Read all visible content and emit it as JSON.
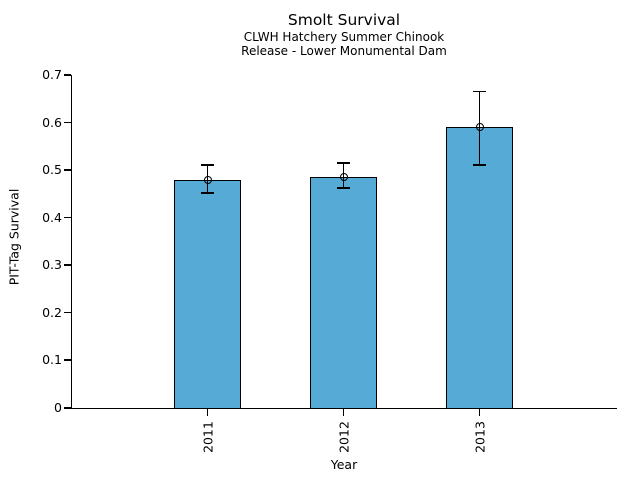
{
  "chart_data": {
    "type": "bar",
    "title": "Smolt Survival",
    "subtitle_lines": [
      "CLWH Hatchery Summer Chinook",
      "Release - Lower Monumental Dam"
    ],
    "xlabel": "Year",
    "ylabel": "PIT-Tag Survival",
    "categories": [
      "2011",
      "2012",
      "2013"
    ],
    "values": [
      0.48,
      0.485,
      0.59
    ],
    "error_low": [
      0.452,
      0.462,
      0.511
    ],
    "error_high": [
      0.511,
      0.515,
      0.665
    ],
    "ylim": [
      0,
      0.7
    ],
    "yticks": [
      0,
      0.1,
      0.2,
      0.3,
      0.4,
      0.5,
      0.6,
      0.7
    ],
    "ytick_labels": [
      "0",
      "0.1",
      "0.2",
      "0.3",
      "0.4",
      "0.5",
      "0.6",
      "0.7"
    ],
    "xtick_label_rotation_deg": -90,
    "grid": false,
    "legend": "none",
    "marker": "open-circle",
    "bar_color": "#56abd6",
    "bar_border_color": "#000000",
    "axis_color": "#000000",
    "error_bar_color": "#000000",
    "background_color": "#ffffff"
  }
}
